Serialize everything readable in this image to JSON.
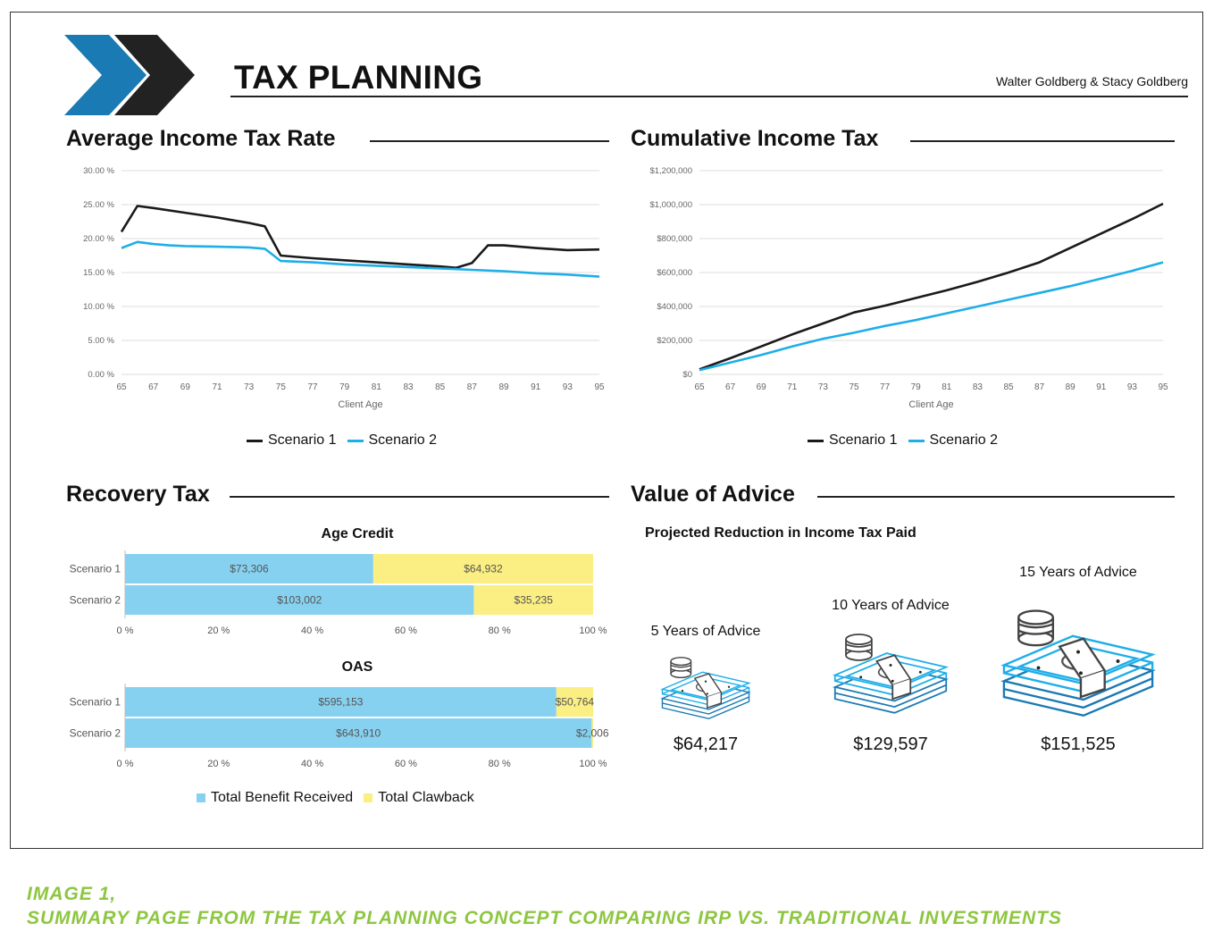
{
  "header": {
    "title": "TAX PLANNING",
    "client_names": "Walter Goldberg & Stacy Goldberg",
    "logo_colors": {
      "front": "#1a7ab3",
      "back": "#222222"
    }
  },
  "sections": {
    "avg_tax_rate": "Average Income Tax Rate",
    "cumulative_tax": "Cumulative Income Tax",
    "recovery_tax": "Recovery Tax",
    "value_of_advice": "Value of Advice"
  },
  "legend": {
    "scenario1": "Scenario 1",
    "scenario2": "Scenario 2",
    "benefit": "Total Benefit Received",
    "clawback": "Total Clawback"
  },
  "colors": {
    "scenario1": "#1a1a1a",
    "scenario2": "#1eaee8",
    "benefit": "#87d1f0",
    "clawback": "#fbee82",
    "grid": "#dcdcdc"
  },
  "chart_data": [
    {
      "type": "line",
      "id": "avg_rate",
      "title": "Average Income Tax Rate",
      "xlabel": "Client Age",
      "ylabel": "",
      "x_ticks": [
        "65",
        "67",
        "69",
        "71",
        "73",
        "75",
        "77",
        "79",
        "81",
        "83",
        "85",
        "87",
        "89",
        "91",
        "93",
        "95"
      ],
      "y_ticks": [
        "0.00 %",
        "5.00 %",
        "10.00 %",
        "15.00 %",
        "20.00 %",
        "25.00 %",
        "30.00 %"
      ],
      "ylim": [
        0,
        30
      ],
      "xlim": [
        65,
        95
      ],
      "series": [
        {
          "name": "Scenario 1",
          "x": [
            65,
            66,
            67,
            69,
            71,
            73,
            74,
            75,
            77,
            79,
            81,
            83,
            85,
            86,
            87,
            88,
            89,
            91,
            93,
            95
          ],
          "values": [
            21,
            24.8,
            24.5,
            23.8,
            23.1,
            22.3,
            21.8,
            17.5,
            17.1,
            16.8,
            16.5,
            16.2,
            15.9,
            15.7,
            16.4,
            19,
            19,
            18.6,
            18.3,
            18.4
          ]
        },
        {
          "name": "Scenario 2",
          "x": [
            65,
            66,
            67,
            68,
            69,
            71,
            73,
            74,
            75,
            77,
            79,
            81,
            83,
            85,
            87,
            89,
            91,
            93,
            95
          ],
          "values": [
            18.6,
            19.5,
            19.2,
            19,
            18.9,
            18.8,
            18.7,
            18.5,
            16.7,
            16.5,
            16.2,
            16,
            15.8,
            15.6,
            15.4,
            15.2,
            14.9,
            14.7,
            14.4
          ]
        }
      ]
    },
    {
      "type": "line",
      "id": "cumulative",
      "title": "Cumulative Income Tax",
      "xlabel": "Client Age",
      "ylabel": "",
      "x_ticks": [
        "65",
        "67",
        "69",
        "71",
        "73",
        "75",
        "77",
        "79",
        "81",
        "83",
        "85",
        "87",
        "89",
        "91",
        "93",
        "95"
      ],
      "y_ticks": [
        "$0",
        "$200,000",
        "$400,000",
        "$600,000",
        "$800,000",
        "$1,000,000",
        "$1,200,000"
      ],
      "ylim": [
        0,
        1200000
      ],
      "xlim": [
        65,
        95
      ],
      "series": [
        {
          "name": "Scenario 1",
          "x": [
            65,
            67,
            69,
            71,
            73,
            75,
            77,
            79,
            81,
            83,
            85,
            87,
            89,
            91,
            93,
            95
          ],
          "values": [
            30000,
            95000,
            165000,
            235000,
            300000,
            365000,
            405000,
            450000,
            495000,
            545000,
            600000,
            660000,
            745000,
            830000,
            915000,
            1005000
          ]
        },
        {
          "name": "Scenario 2",
          "x": [
            65,
            67,
            69,
            71,
            73,
            75,
            77,
            79,
            81,
            83,
            85,
            87,
            89,
            91,
            93,
            95
          ],
          "values": [
            25000,
            70000,
            115000,
            165000,
            210000,
            245000,
            285000,
            320000,
            360000,
            400000,
            440000,
            480000,
            520000,
            565000,
            610000,
            660000
          ]
        }
      ]
    },
    {
      "type": "bar",
      "id": "age_credit",
      "title": "Age Credit",
      "orientation": "horizontal-stacked-percent",
      "categories": [
        "Scenario 1",
        "Scenario 2"
      ],
      "x_ticks": [
        "0 %",
        "20 %",
        "40 %",
        "60 %",
        "80 %",
        "100 %"
      ],
      "series": [
        {
          "name": "Total Benefit Received",
          "values": [
            73306,
            103002
          ],
          "labels": [
            "$73,306",
            "$103,002"
          ]
        },
        {
          "name": "Total Clawback",
          "values": [
            64932,
            35235
          ],
          "labels": [
            "$64,932",
            "$35,235"
          ]
        }
      ]
    },
    {
      "type": "bar",
      "id": "oas",
      "title": "OAS",
      "orientation": "horizontal-stacked-percent",
      "categories": [
        "Scenario 1",
        "Scenario 2"
      ],
      "x_ticks": [
        "0 %",
        "20 %",
        "40 %",
        "60 %",
        "80 %",
        "100 %"
      ],
      "series": [
        {
          "name": "Total Benefit Received",
          "values": [
            595153,
            643910
          ],
          "labels": [
            "$595,153",
            "$643,910"
          ]
        },
        {
          "name": "Total Clawback",
          "values": [
            50764,
            2006
          ],
          "labels": [
            "$50,764",
            "$2,006"
          ]
        }
      ]
    }
  ],
  "advice": {
    "subtitle": "Projected Reduction in Income Tax Paid",
    "items": [
      {
        "label": "5 Years of Advice",
        "value": "$64,217",
        "icon": "money-stack-icon"
      },
      {
        "label": "10 Years of Advice",
        "value": "$129,597",
        "icon": "money-stack-icon"
      },
      {
        "label": "15 Years of Advice",
        "value": "$151,525",
        "icon": "money-stack-icon"
      }
    ]
  },
  "caption": {
    "line1": "IMAGE 1,",
    "line2": "SUMMARY PAGE FROM THE TAX PLANNING CONCEPT COMPARING IRP VS. TRADITIONAL INVESTMENTS"
  }
}
